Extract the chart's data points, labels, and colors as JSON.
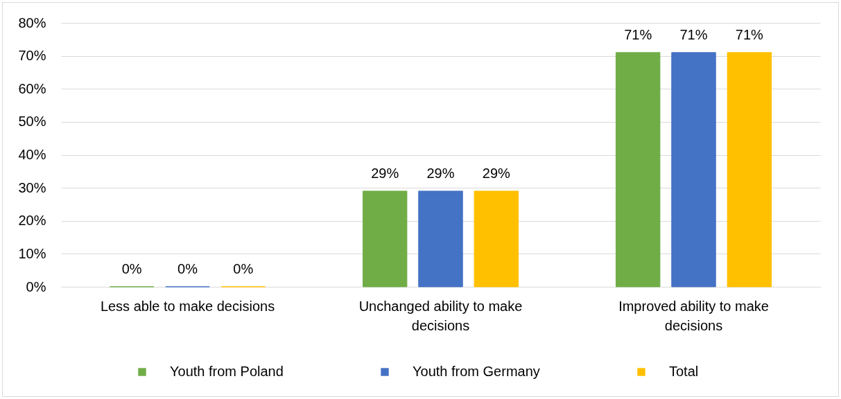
{
  "chart_data": {
    "type": "bar",
    "categories": [
      "Less able to make decisions",
      "Unchanged ability to make decisions",
      "Improved ability to make decisions"
    ],
    "series": [
      {
        "name": "Youth from Poland",
        "color": "#70ad47",
        "values": [
          0,
          29,
          71
        ],
        "value_labels": [
          "0%",
          "29%",
          "71%"
        ]
      },
      {
        "name": "Youth from Germany",
        "color": "#4472c4",
        "values": [
          0,
          29,
          71
        ],
        "value_labels": [
          "0%",
          "29%",
          "71%"
        ]
      },
      {
        "name": "Total",
        "color": "#ffc000",
        "values": [
          0,
          29,
          71
        ],
        "value_labels": [
          "0%",
          "29%",
          "71%"
        ]
      }
    ],
    "ylim": [
      0,
      80
    ],
    "yticks": [
      {
        "value": 0,
        "label": "0%"
      },
      {
        "value": 10,
        "label": "10%"
      },
      {
        "value": 20,
        "label": "20%"
      },
      {
        "value": 30,
        "label": "30%"
      },
      {
        "value": 40,
        "label": "40%"
      },
      {
        "value": 50,
        "label": "50%"
      },
      {
        "value": 60,
        "label": "60%"
      },
      {
        "value": 70,
        "label": "70%"
      },
      {
        "value": 80,
        "label": "80%"
      }
    ],
    "grid": "y",
    "legend": "bottom"
  }
}
